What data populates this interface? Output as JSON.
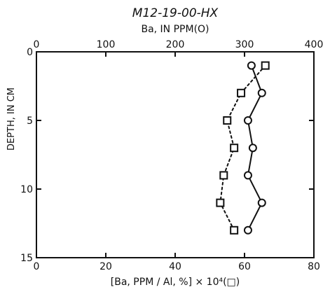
{
  "chart_data": {
    "type": "line",
    "title": "M12-19-00-HX",
    "top_axis": {
      "label": "Ba, IN PPM(O)",
      "ticks": [
        0,
        100,
        200,
        300,
        400
      ],
      "range": [
        0,
        400
      ]
    },
    "bottom_axis": {
      "label": "[Ba, PPM / Al, %] × 10⁴(□)",
      "ticks": [
        0,
        20,
        40,
        60,
        80
      ],
      "range": [
        0,
        80
      ]
    },
    "y_axis": {
      "label": "DEPTH, IN CM",
      "ticks": [
        0,
        5,
        10,
        15
      ],
      "range": [
        0,
        15
      ],
      "inverted": true
    },
    "grid": false,
    "series": [
      {
        "marker": "circle",
        "line_style": "solid",
        "axis": "top",
        "points": [
          {
            "x": 310,
            "y": 1
          },
          {
            "x": 325,
            "y": 3
          },
          {
            "x": 305,
            "y": 5
          },
          {
            "x": 312,
            "y": 7
          },
          {
            "x": 305,
            "y": 9
          },
          {
            "x": 325,
            "y": 11
          },
          {
            "x": 305,
            "y": 13
          }
        ]
      },
      {
        "marker": "square",
        "line_style": "dotted",
        "axis": "bottom",
        "points": [
          {
            "x": 66,
            "y": 1
          },
          {
            "x": 59,
            "y": 3
          },
          {
            "x": 55,
            "y": 5
          },
          {
            "x": 57,
            "y": 7
          },
          {
            "x": 54,
            "y": 9
          },
          {
            "x": 53,
            "y": 11
          },
          {
            "x": 57,
            "y": 13
          }
        ]
      }
    ]
  }
}
